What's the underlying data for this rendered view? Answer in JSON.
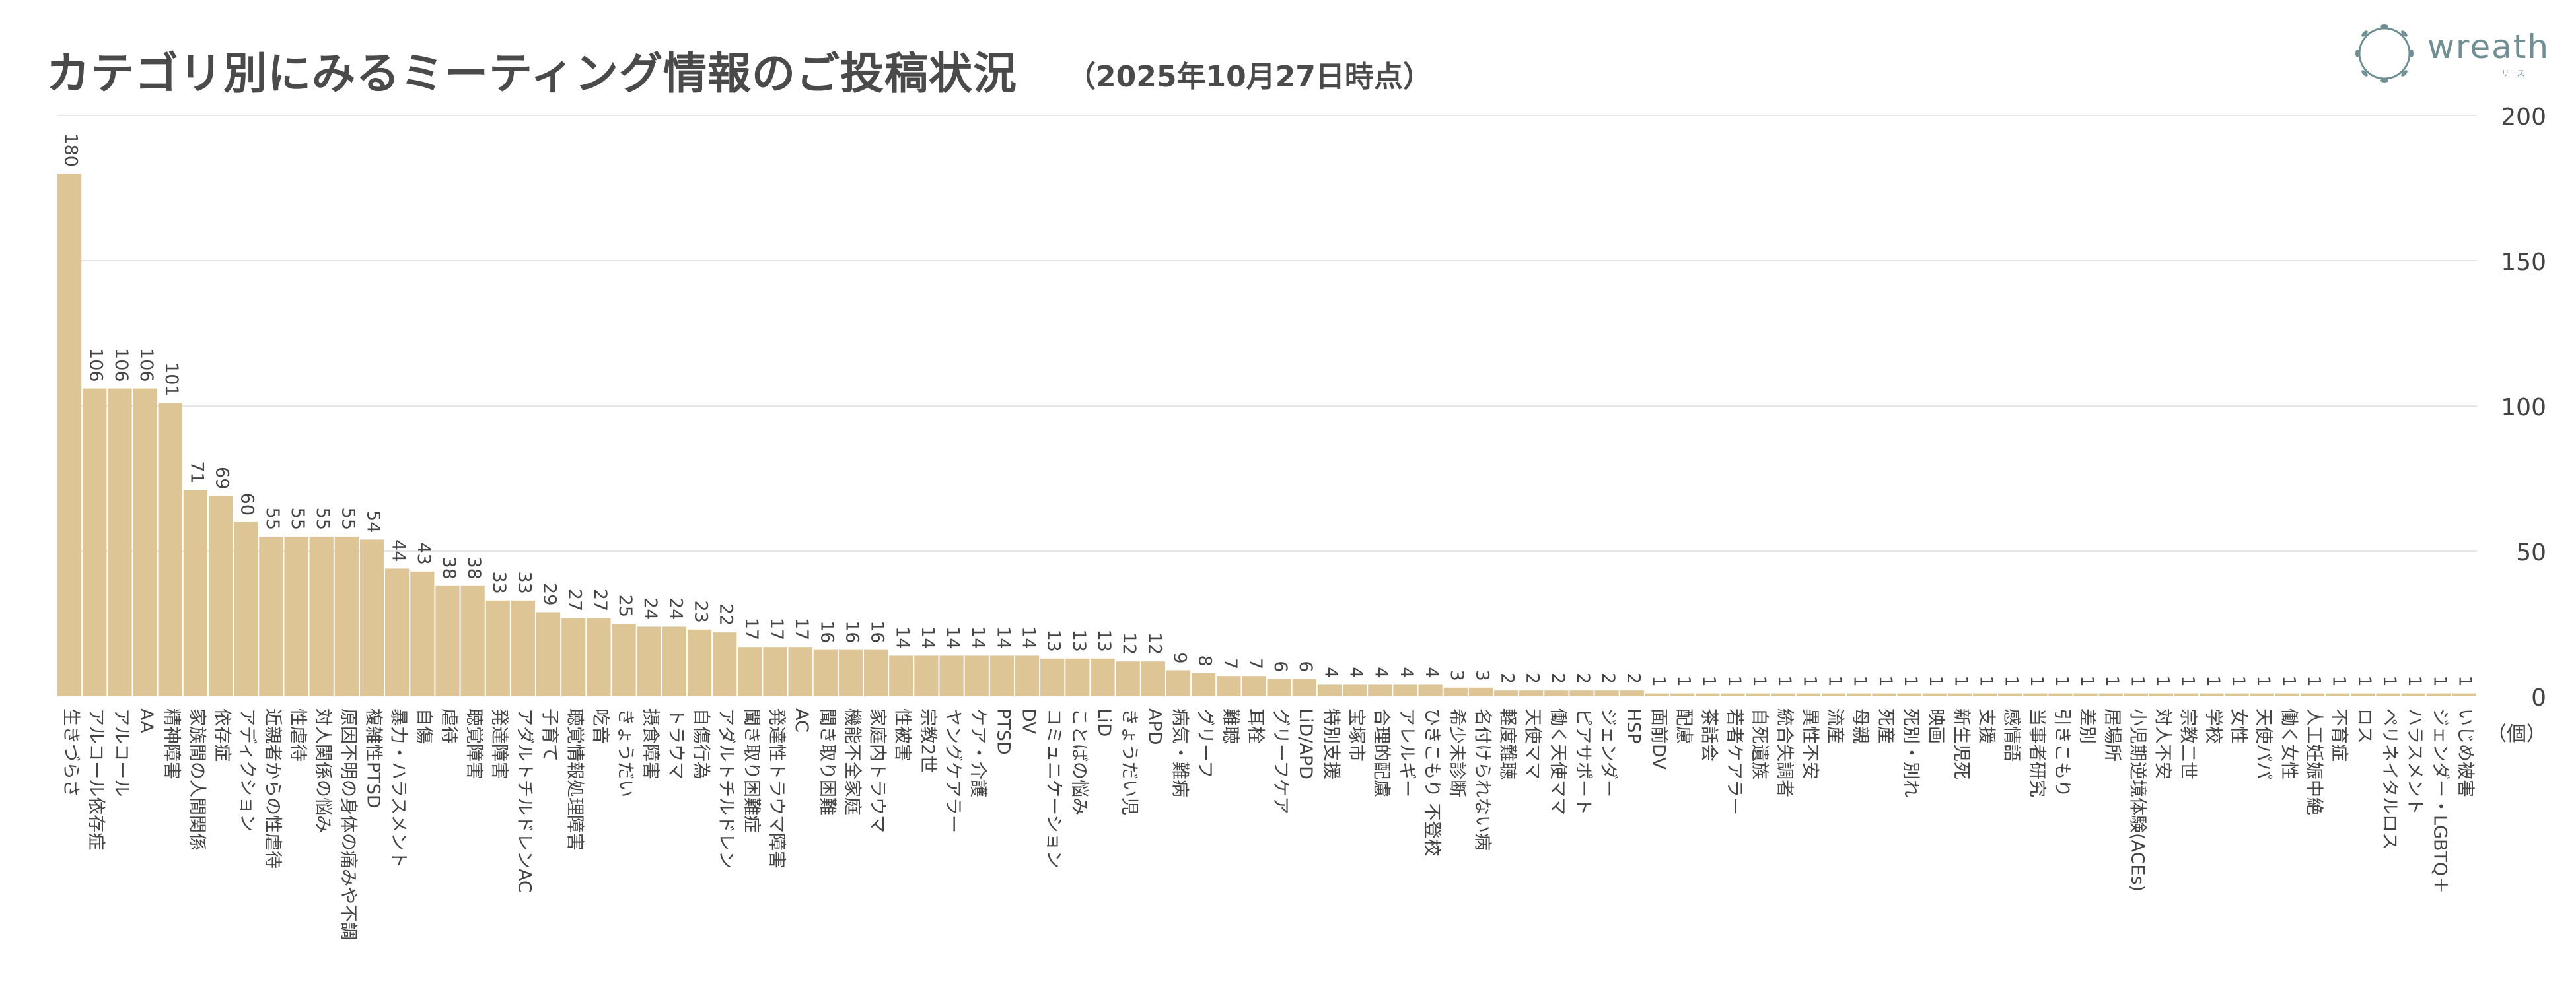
{
  "header": {
    "title": "カテゴリ別にみるミーティング情報のご投稿状況",
    "subtitle": "（2025年10月27日時点）"
  },
  "logo": {
    "name": "wreath",
    "sub": "リース",
    "icon": "wreath-icon"
  },
  "colors": {
    "bar": "#dec596",
    "grid": "#e6e6e6",
    "text": "#444444"
  },
  "chart_data": {
    "type": "bar",
    "title": "カテゴリ別にみるミーティング情報のご投稿状況",
    "ylim": [
      0,
      200
    ],
    "yticks": [
      0,
      50,
      100,
      150,
      200
    ],
    "unit_label": "（個）",
    "grid": true,
    "categories": [
      "生きづらさ",
      "アルコール依存症",
      "アルコール",
      "AA",
      "精神障害",
      "家族間の人間関係",
      "依存症",
      "アディクション",
      "近親者からの性虐待",
      "性虐待",
      "対人関係の悩み",
      "原因不明の身体の痛みや不調",
      "複雑性PTSD",
      "暴力・ハラスメント",
      "自傷",
      "虐待",
      "聴覚障害",
      "発達障害",
      "アダルトチルドレンAC",
      "子育て",
      "聴覚情報処理障害",
      "吃音",
      "きょうだい",
      "摂食障害",
      "トラウマ",
      "自傷行為",
      "アダルトチルドレン",
      "聞き取り困難症",
      "発達性トラウマ障害",
      "AC",
      "聞き取り困難",
      "機能不全家庭",
      "家庭内トラウマ",
      "性被害",
      "宗教2世",
      "ヤングケアラー",
      "ケア・介護",
      "PTSD",
      "DV",
      "コミュニケーション",
      "ことばの悩み",
      "LiD",
      "きょうだい児",
      "APD",
      "病気・難病",
      "グリーフ",
      "難聴",
      "耳栓",
      "グリーフケア",
      "LiD/APD",
      "特別支援",
      "宝塚市",
      "合理的配慮",
      "アレルギー",
      "ひきこもり 不登校",
      "希少未診断",
      "名付けられない病",
      "軽度難聴",
      "天使ママ",
      "働く天使ママ",
      "ピアサポート",
      "ジェンダー",
      "HSP",
      "面前DV",
      "配慮",
      "茶話会",
      "若者ケアラー",
      "自死遺族",
      "統合失調者",
      "異性不安",
      "流産",
      "母親",
      "死産",
      "死別・別れ",
      "映画",
      "新生児死",
      "支援",
      "感情語",
      "当事者研究",
      "引きこもり",
      "差別",
      "居場所",
      "小児期逆境体験(ACEs)",
      "対人不安",
      "宗教二世",
      "学校",
      "女性",
      "天使パパ",
      "働く女性",
      "人工妊娠中絶",
      "不育症",
      "ロス",
      "ペリネイタルロス",
      "ハラスメント",
      "ジェンダー・LGBTQ＋",
      "いじめ被害"
    ],
    "values": [
      180,
      106,
      106,
      106,
      101,
      71,
      69,
      60,
      55,
      55,
      55,
      55,
      54,
      44,
      43,
      38,
      38,
      33,
      33,
      29,
      27,
      27,
      25,
      24,
      24,
      23,
      22,
      17,
      17,
      17,
      16,
      16,
      16,
      14,
      14,
      14,
      14,
      14,
      14,
      13,
      13,
      13,
      12,
      12,
      9,
      8,
      7,
      7,
      6,
      6,
      4,
      4,
      4,
      4,
      4,
      3,
      3,
      2,
      2,
      2,
      2,
      2,
      2,
      1,
      1,
      1,
      1,
      1,
      1,
      1,
      1,
      1,
      1,
      1,
      1,
      1,
      1,
      1,
      1,
      1,
      1,
      1,
      1,
      1,
      1,
      1,
      1,
      1,
      1,
      1,
      1,
      1,
      1,
      1,
      1,
      1
    ]
  }
}
